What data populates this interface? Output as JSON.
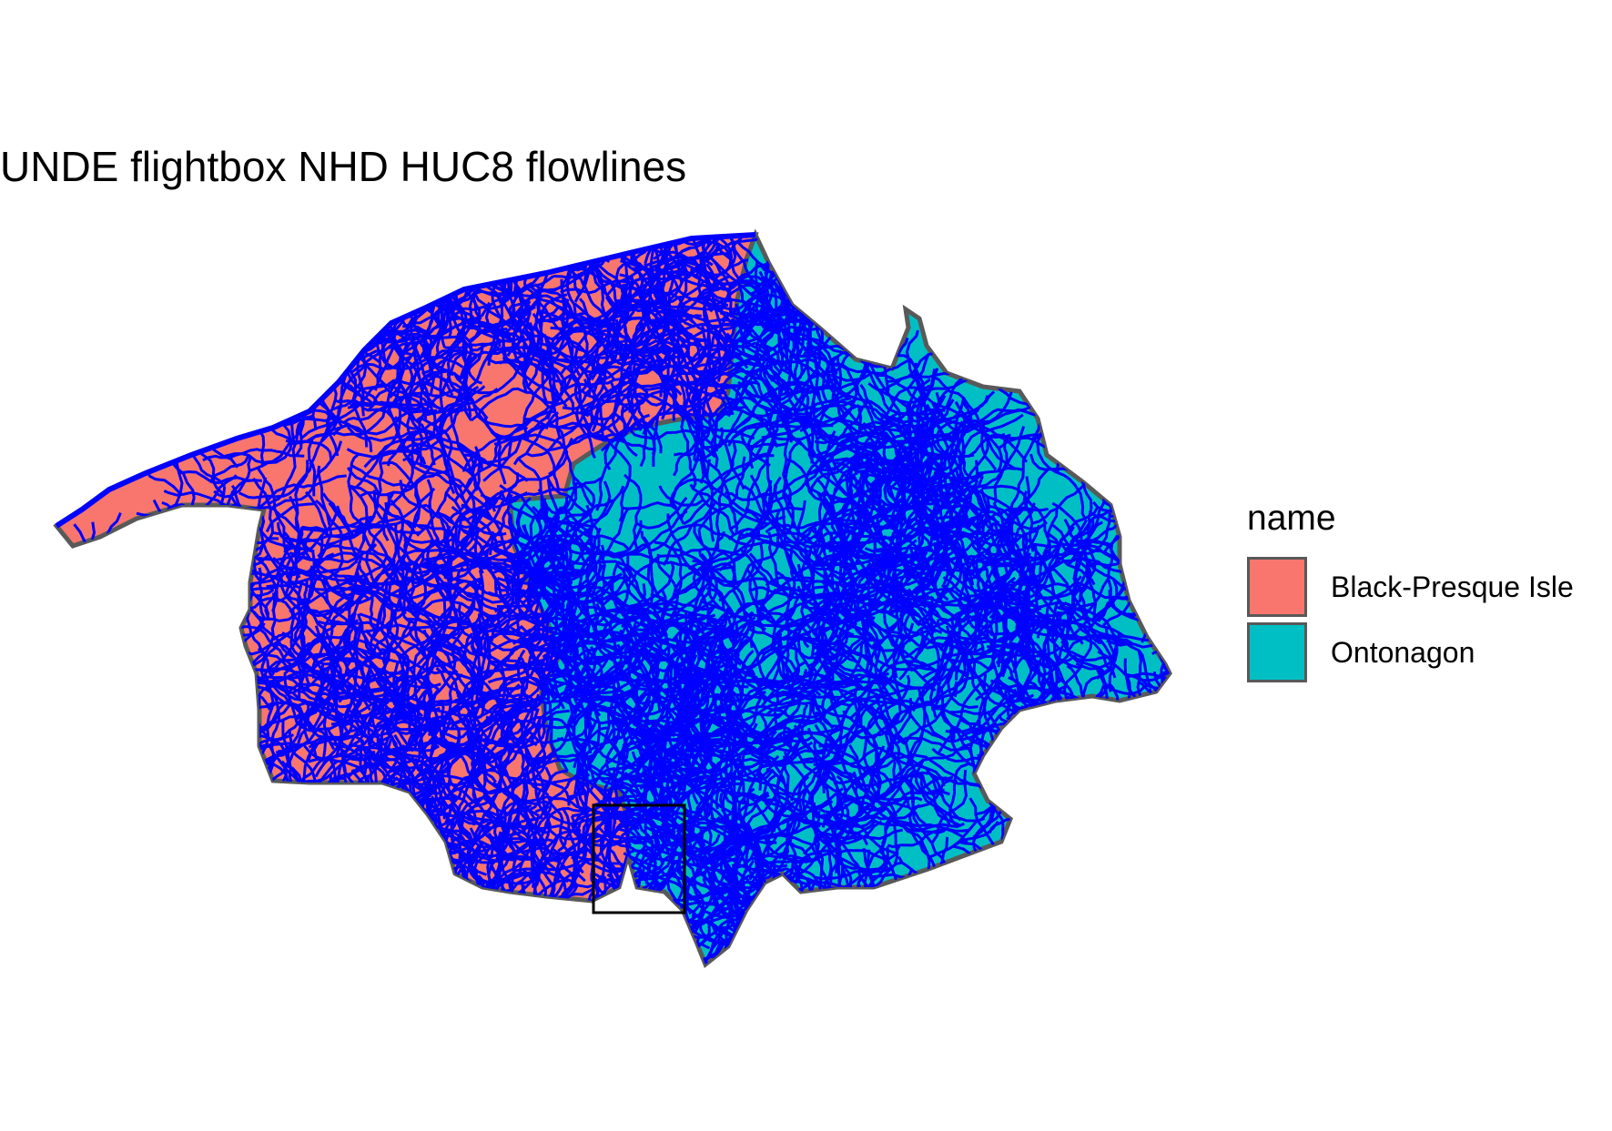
{
  "title": "UNDE flightbox NHD HUC8 flowlines",
  "legend": {
    "title": "name",
    "items": [
      {
        "label": "Black-Presque Isle",
        "color": "#F8766D"
      },
      {
        "label": "Ontonagon",
        "color": "#00BFC4"
      }
    ]
  },
  "flowline_color": "#0000FF",
  "boundary_color": "#595959",
  "flightbox_color": "#000000"
}
